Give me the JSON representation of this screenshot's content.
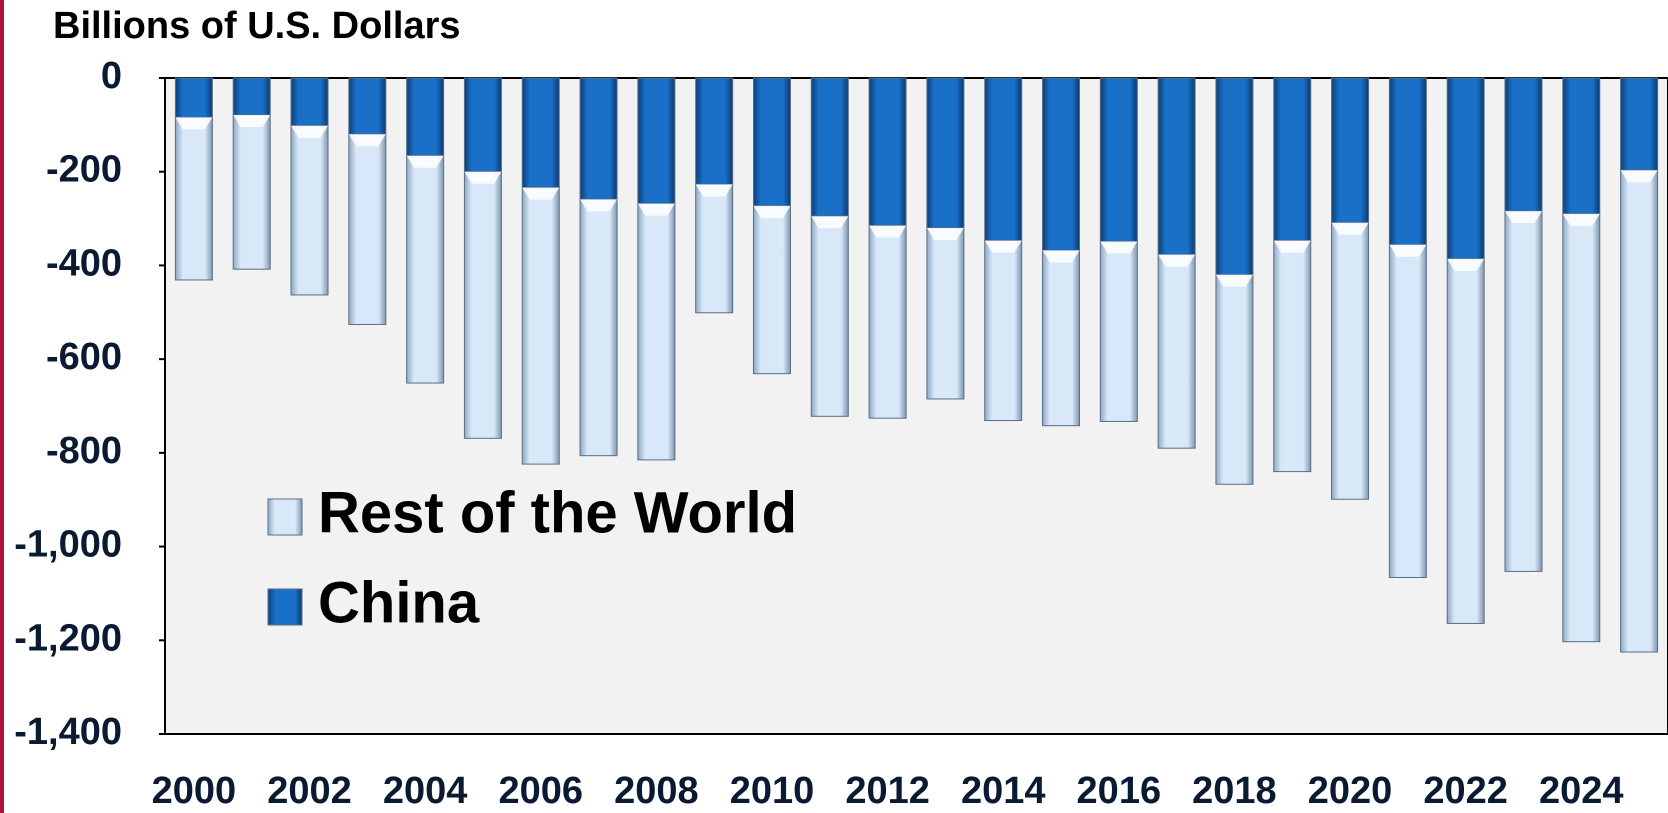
{
  "chart_data": {
    "type": "stacked_bar",
    "title": "Billions of U.S. Dollars",
    "categories": [
      "2000",
      null,
      "2002",
      null,
      "2004",
      null,
      "2006",
      null,
      "2008",
      null,
      "2010",
      null,
      "2012",
      null,
      "2014",
      null,
      "2016",
      null,
      "2018",
      null,
      "2020",
      null,
      "2022",
      null,
      "2024",
      null
    ],
    "series": [
      {
        "name": "Rest of the World",
        "color": "#c6dcf2",
        "values": [
          -347,
          -329,
          -361,
          -406,
          -485,
          -569,
          -590,
          -547,
          -547,
          -274,
          -358,
          -427,
          -411,
          -365,
          -384,
          -374,
          -384,
          -413,
          -447,
          -493,
          -590,
          -710,
          -778,
          -769,
          -913,
          -1028
        ]
      },
      {
        "name": "China",
        "color": "#1565b8",
        "values": [
          -84,
          -79,
          -102,
          -120,
          -166,
          -200,
          -234,
          -259,
          -268,
          -227,
          -273,
          -295,
          -315,
          -320,
          -347,
          -368,
          -349,
          -377,
          -420,
          -347,
          -309,
          -356,
          -386,
          -284,
          -290,
          -197
        ]
      }
    ],
    "ylim": [
      -1400,
      0
    ],
    "yticks": [
      0,
      -200,
      -400,
      -600,
      -800,
      {
        "value": -1000,
        "label": "-1,000"
      },
      {
        "value": -1200,
        "label": "-1,200"
      },
      {
        "value": -1400,
        "label": "-1,400"
      }
    ],
    "legend": "lower-left"
  }
}
